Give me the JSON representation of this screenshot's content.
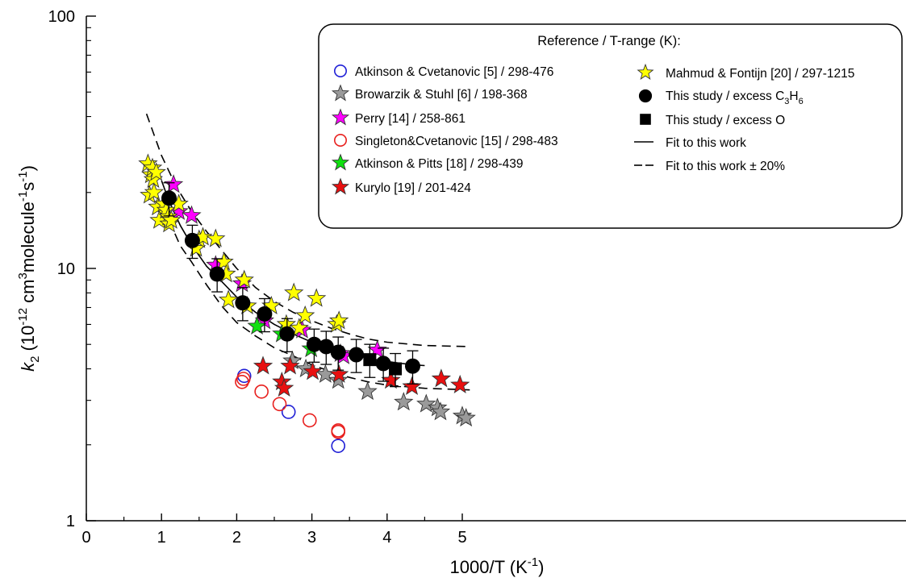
{
  "chart_data": {
    "type": "scatter",
    "title": "",
    "xlabel": {
      "main": "1000/T (K",
      "sup": "-1",
      "close": ")"
    },
    "ylabel": {
      "k": "k",
      "sub": "2",
      "p1": " (10",
      "s1": "-12",
      "p2": " cm",
      "s2": "3",
      "p3": "molecule",
      "s3": "-1",
      "p4": "s",
      "s4": "-1",
      "p5": ")"
    },
    "x_scale": "linear",
    "y_scale": "log",
    "xlim": [
      0,
      5.45
    ],
    "ylim": [
      1,
      100
    ],
    "x_ticks": [
      0,
      1,
      2,
      3,
      4,
      5
    ],
    "x_tick_labels": [
      "0",
      "1",
      "2",
      "3",
      "4",
      "5"
    ],
    "y_ticks": [
      1,
      10,
      100
    ],
    "y_tick_labels": [
      "1",
      "10",
      "100"
    ],
    "grid": false,
    "legend": {
      "placement": "top-right",
      "title": "Reference / T-range (K):",
      "col1": [
        {
          "label": "Atkinson & Cvetanovic [5] / 298-476",
          "marker": "circle-open",
          "color": "#1f1fd6"
        },
        {
          "label": "Browarzik & Stuhl [6] / 198-368",
          "marker": "star",
          "color": "#9a9a9a"
        },
        {
          "label": "Perry [14] / 258-861",
          "marker": "star",
          "color": "#ff00ff"
        },
        {
          "label": "Singleton&Cvetanovic [15] / 298-483",
          "marker": "circle-open",
          "color": "#e8201e"
        },
        {
          "label": "Atkinson & Pitts [18] / 298-439",
          "marker": "star",
          "color": "#10e010"
        },
        {
          "label": "Kurylo [19] / 201-424",
          "marker": "star",
          "color": "#e81010"
        }
      ],
      "col2": [
        {
          "label": "Mahmud & Fontijn [20] / 297-1215",
          "marker": "star",
          "color": "#ffff00"
        },
        {
          "label_main": "This study / excess C",
          "label_sub1": "3",
          "label_mid": "H",
          "label_sub2": "6",
          "marker": "circle-filled",
          "color": "#000000"
        },
        {
          "label": "This study / excess O",
          "marker": "square-filled",
          "color": "#000000"
        },
        {
          "label": "Fit to this work",
          "marker": "line-solid",
          "color": "#000000"
        },
        {
          "label": "Fit to this work ± 20%",
          "marker": "line-dashed",
          "color": "#000000"
        }
      ]
    },
    "series": [
      {
        "name": "Atkinson & Cvetanovic [5] / 298-476",
        "marker": "circle-open",
        "color": "#1f1fd6",
        "x": [
          2.1,
          2.69,
          3.35
        ],
        "y": [
          3.75,
          2.7,
          1.98
        ]
      },
      {
        "name": "Browarzik & Stuhl [6] / 198-368",
        "marker": "star",
        "color": "#9a9a9a",
        "x": [
          2.74,
          2.92,
          3.18,
          3.35,
          3.74,
          4.22,
          4.52,
          4.67,
          4.71,
          5.0,
          5.05
        ],
        "y": [
          4.3,
          4.0,
          3.8,
          3.6,
          3.25,
          2.95,
          2.9,
          2.8,
          2.7,
          2.6,
          2.55
        ]
      },
      {
        "name": "Perry [14] / 258-861",
        "marker": "star",
        "color": "#ff00ff",
        "x": [
          1.16,
          1.23,
          1.4,
          1.72,
          2.07,
          2.37,
          2.87,
          3.38,
          3.42,
          3.87
        ],
        "y": [
          21.5,
          16.8,
          16.2,
          10.3,
          8.7,
          6.2,
          5.7,
          4.6,
          4.5,
          4.75
        ]
      },
      {
        "name": "Singleton&Cvetanovic [15] / 298-483",
        "marker": "circle-open",
        "color": "#e8201e",
        "x": [
          2.07,
          2.09,
          2.33,
          2.57,
          2.97,
          3.35,
          3.35
        ],
        "y": [
          3.55,
          3.65,
          3.25,
          2.9,
          2.5,
          2.25,
          2.28
        ]
      },
      {
        "name": "Atkinson & Pitts [18] / 298-439",
        "marker": "star",
        "color": "#10e010",
        "x": [
          2.27,
          2.6,
          2.99
        ],
        "y": [
          5.9,
          5.5,
          4.8
        ]
      },
      {
        "name": "Kurylo [19] / 201-424",
        "marker": "star",
        "color": "#e81010",
        "x": [
          2.35,
          2.6,
          2.63,
          2.71,
          3.01,
          3.36,
          4.05,
          4.33,
          4.72,
          4.97
        ],
        "y": [
          4.1,
          3.55,
          3.35,
          4.1,
          3.9,
          3.8,
          3.6,
          3.4,
          3.65,
          3.45
        ]
      },
      {
        "name": "Mahmud & Fontijn [20] / 297-1215",
        "marker": "star",
        "color": "#ffff00",
        "x": [
          0.82,
          0.84,
          0.86,
          0.88,
          0.89,
          0.9,
          0.93,
          0.95,
          0.97,
          1.03,
          1.06,
          1.09,
          1.1,
          1.13,
          1.23,
          1.46,
          1.5,
          1.55,
          1.72,
          1.83,
          1.86,
          1.89,
          2.1,
          2.14,
          2.46,
          2.66,
          2.76,
          2.83,
          2.91,
          3.06,
          3.33,
          3.36
        ],
        "y": [
          26.0,
          19.5,
          23.5,
          25.0,
          22.5,
          20.0,
          24.0,
          17.5,
          15.5,
          18.0,
          17.0,
          16.0,
          15.0,
          15.5,
          18.0,
          12.0,
          13.0,
          13.3,
          13.1,
          10.6,
          9.5,
          7.5,
          9.0,
          7.1,
          7.1,
          6.0,
          8.0,
          5.8,
          6.5,
          7.6,
          6.0,
          6.2
        ]
      },
      {
        "name": "This study / excess C3H6",
        "marker": "circle-filled",
        "color": "#000000",
        "x": [
          1.1,
          1.41,
          1.74,
          2.08,
          2.37,
          2.67,
          3.03,
          3.19,
          3.35,
          3.59,
          3.95,
          4.34
        ],
        "y": [
          19.0,
          12.9,
          9.5,
          7.3,
          6.6,
          5.5,
          5.0,
          4.9,
          4.65,
          4.55,
          4.2,
          4.1
        ],
        "err_frac": 0.15
      },
      {
        "name": "This study / excess O",
        "marker": "square-filled",
        "color": "#000000",
        "x": [
          3.77,
          4.11
        ],
        "y": [
          4.35,
          4.0
        ],
        "err_frac": 0.15
      }
    ],
    "fit": {
      "name": "Fit to this work",
      "style": "solid",
      "x": [
        1.0,
        1.1,
        1.25,
        1.4,
        1.6,
        1.75,
        2.0,
        2.25,
        2.5,
        2.75,
        3.0,
        3.25,
        3.5,
        3.75,
        4.0,
        4.2,
        4.4,
        4.5
      ],
      "y": [
        22.3,
        18.5,
        14.8,
        12.4,
        10.2,
        9.2,
        7.7,
        6.7,
        6.0,
        5.5,
        5.1,
        4.8,
        4.6,
        4.4,
        4.28,
        4.2,
        4.14,
        4.12
      ]
    },
    "fit_bands": [
      {
        "name": "Fit to this work + 20%",
        "style": "dashed",
        "x": [
          0.8,
          1.0,
          1.2,
          1.4,
          1.6,
          1.8,
          2.0,
          2.25,
          2.5,
          2.75,
          3.0,
          3.25,
          3.5,
          3.75,
          4.0,
          4.5,
          5.1
        ],
        "y": [
          41.0,
          28.0,
          21.0,
          16.8,
          14.0,
          11.8,
          10.0,
          8.4,
          7.4,
          6.7,
          6.2,
          5.8,
          5.5,
          5.25,
          5.1,
          4.95,
          4.9
        ]
      },
      {
        "name": "Fit to this work - 20%",
        "style": "dashed",
        "x": [
          1.1,
          1.25,
          1.4,
          1.6,
          1.8,
          2.0,
          2.25,
          2.5,
          2.75,
          3.0,
          3.25,
          3.5,
          3.75,
          4.0,
          4.5,
          5.1
        ],
        "y": [
          15.5,
          12.3,
          10.6,
          8.6,
          7.1,
          6.1,
          5.4,
          4.85,
          4.5,
          4.15,
          3.9,
          3.7,
          3.55,
          3.45,
          3.35,
          3.3
        ]
      }
    ]
  }
}
